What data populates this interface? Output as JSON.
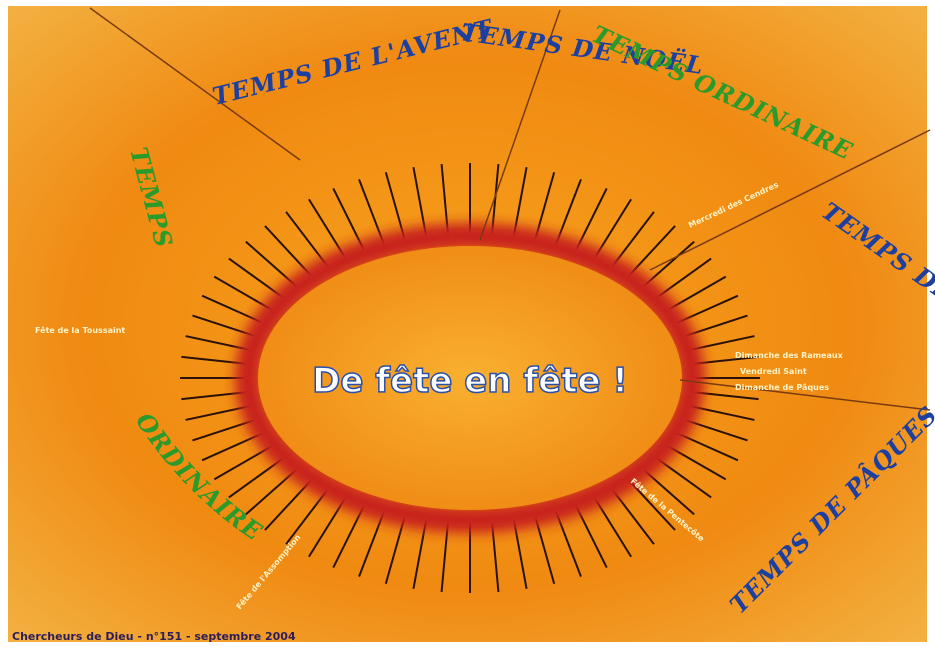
{
  "title": "De fête en fête !",
  "seasons": [
    "TEMPS DE L'AVENT",
    "TEMPS DE NOËL",
    "TEMPS ORDINAIRE",
    "TEMPS DE CARÊME",
    "TEMPS DE PÂQUES"
  ],
  "ordinary_time": {
    "first": "TEMPS",
    "second": "ORDINAIRE"
  },
  "feasts": [
    "Fête de la Toussaint",
    "Mercredi des Cendres",
    "Dimanche des Rameaux",
    "Vendredi Saint",
    "Dimanche de Pâques",
    "Fête de la Pentecôte",
    "Fête de l'Assomption"
  ],
  "footer": "Chercheurs de Dieu - n°151 - septembre 2004"
}
